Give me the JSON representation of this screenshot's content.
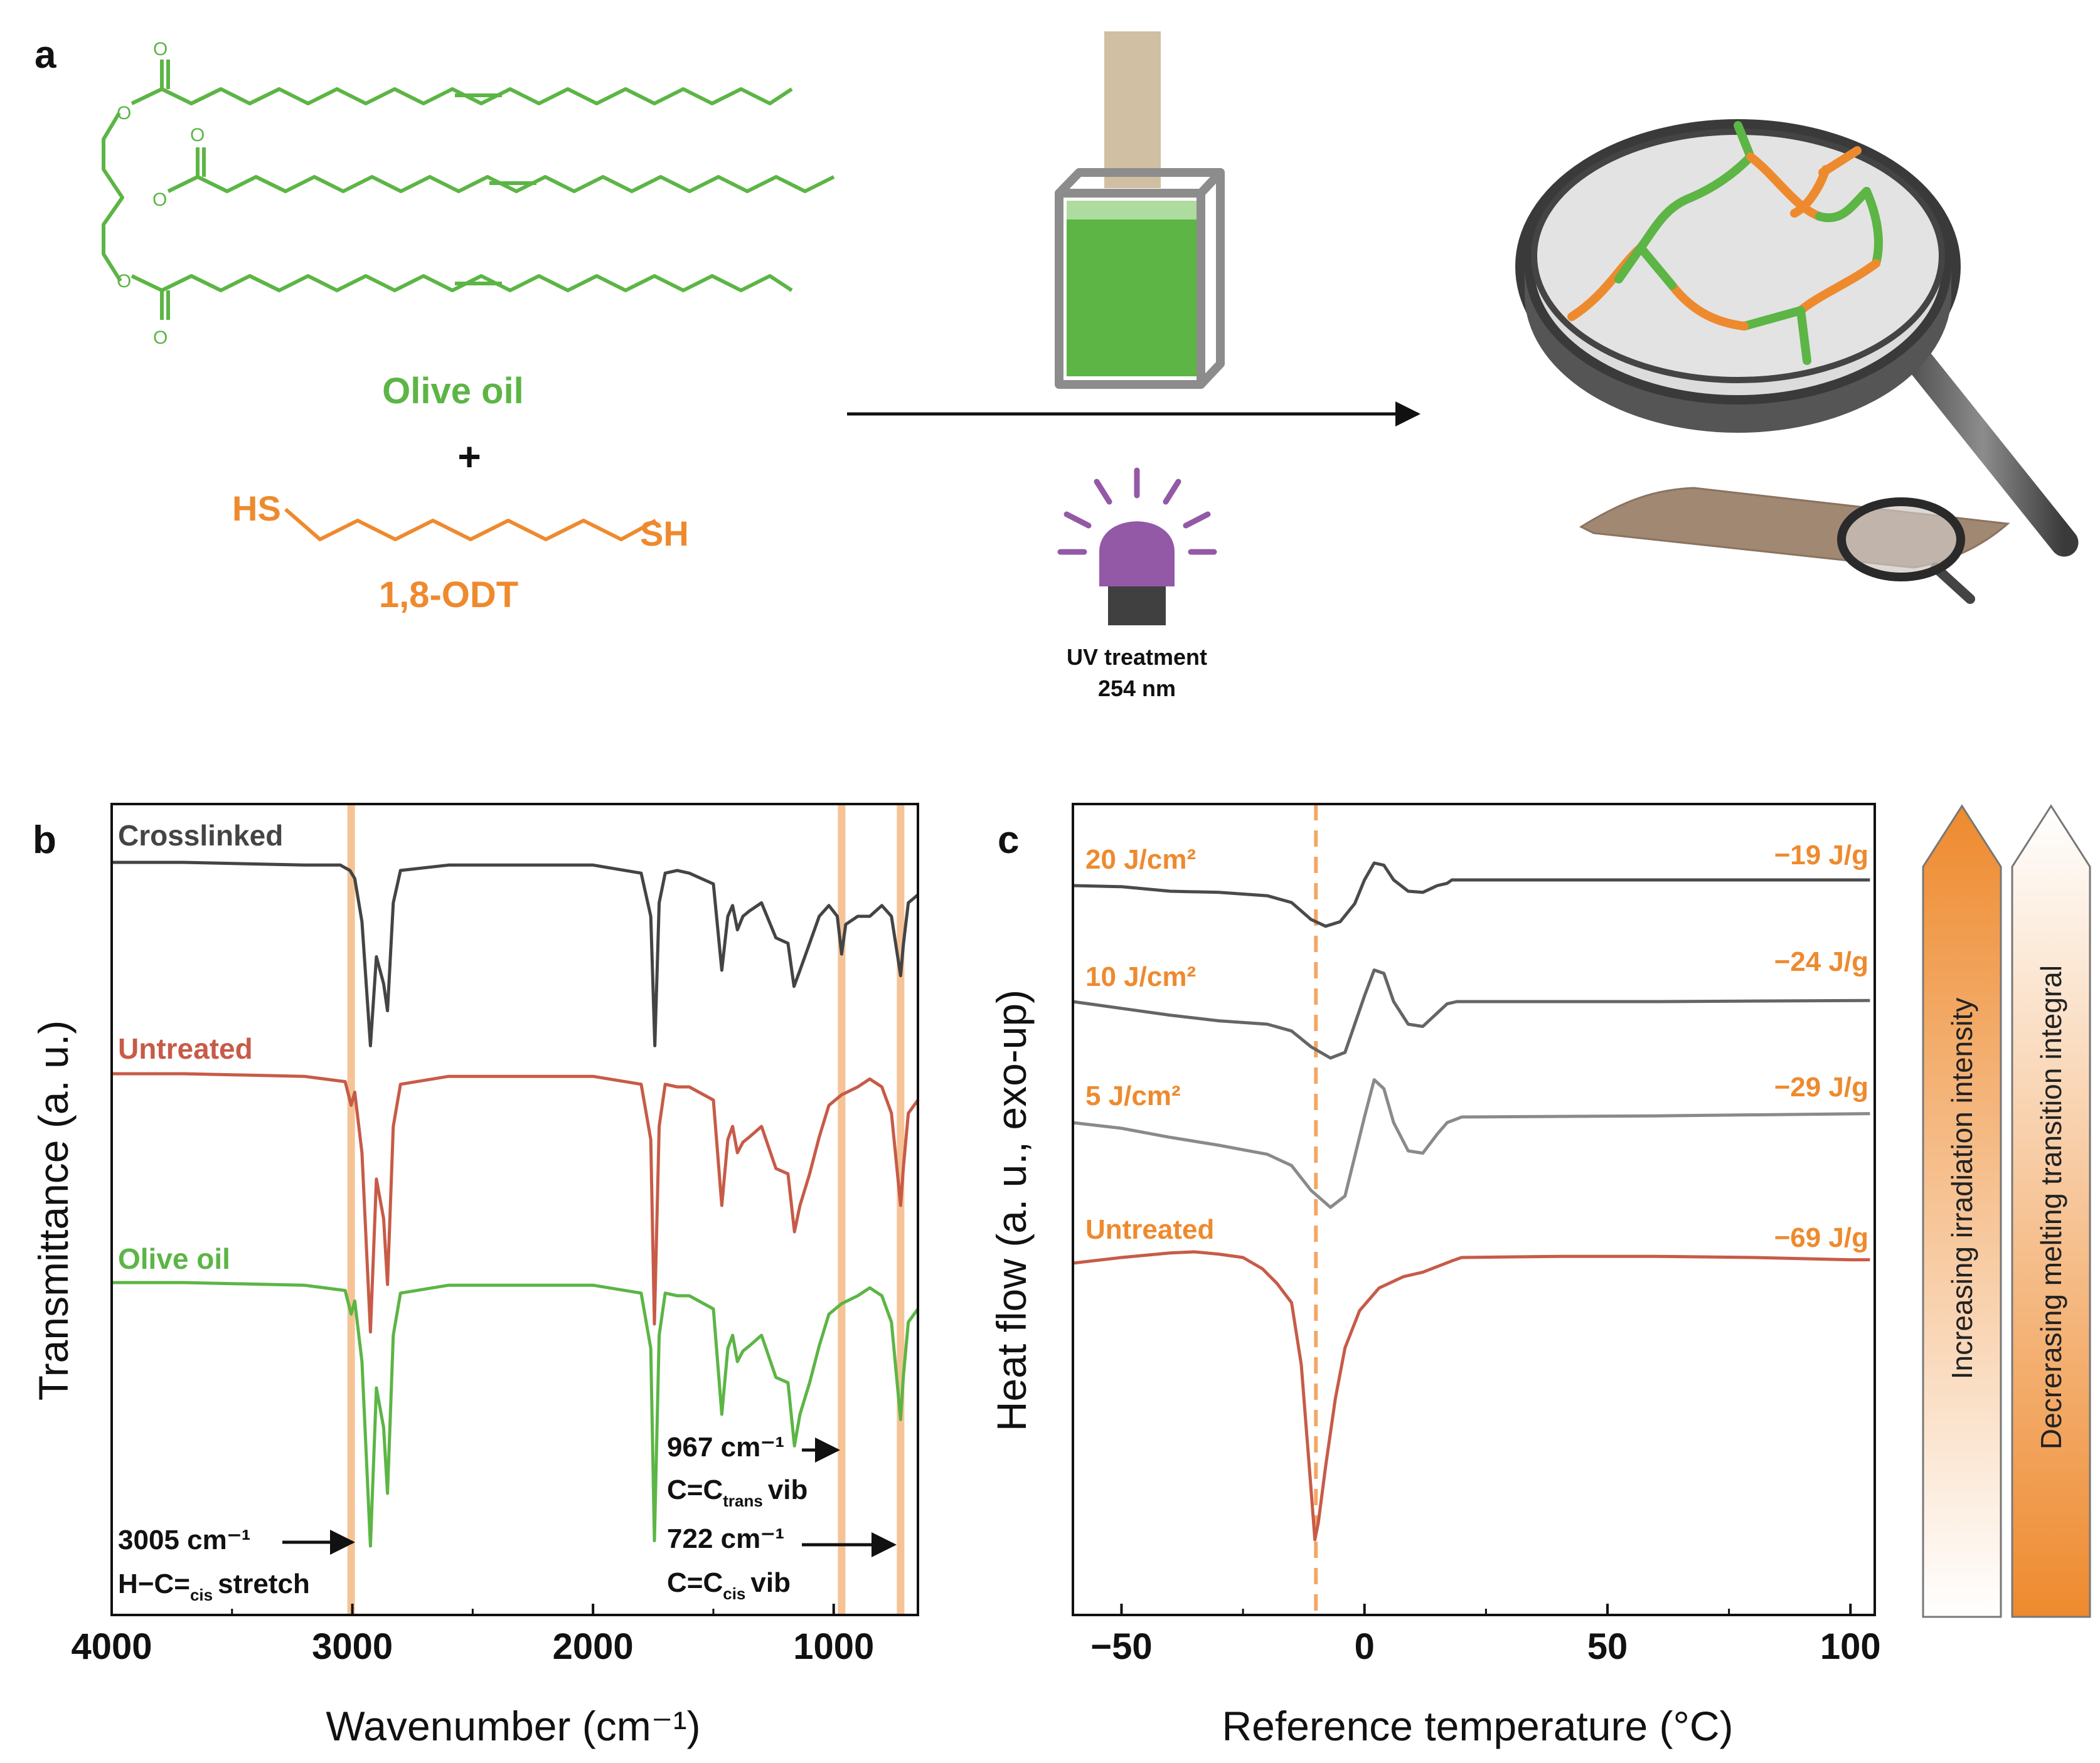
{
  "panel_a": {
    "label": "a",
    "olive_oil_label": "Olive oil",
    "plus": "+",
    "thiol_left": "HS",
    "thiol_right": "SH",
    "odt_label": "1,8-ODT",
    "uv_line1": "UV treatment",
    "uv_line2": "254 nm",
    "oxygen": "O",
    "colors": {
      "olive": "#5cb545",
      "thiol": "#ee8a2e",
      "uv": "#9359a6"
    }
  },
  "chart_data": [
    {
      "type": "line",
      "panel_label": "b",
      "title": "",
      "xlabel": "Wavenumber (cm⁻¹)",
      "ylabel": "Transmittance (a. u.)",
      "xlim": [
        4000,
        650
      ],
      "x_reversed": true,
      "x_ticks": [
        "4000",
        "3000",
        "2000",
        "1000"
      ],
      "series": [
        {
          "name": "Crosslinked",
          "color": "#444444",
          "points": [
            [
              4000,
              0.0
            ],
            [
              3700,
              0.0
            ],
            [
              3200,
              -0.01
            ],
            [
              3050,
              -0.01
            ],
            [
              3010,
              -0.03
            ],
            [
              2990,
              -0.06
            ],
            [
              2960,
              -0.22
            ],
            [
              2925,
              -0.68
            ],
            [
              2900,
              -0.35
            ],
            [
              2870,
              -0.45
            ],
            [
              2854,
              -0.55
            ],
            [
              2830,
              -0.15
            ],
            [
              2800,
              -0.03
            ],
            [
              2600,
              -0.01
            ],
            [
              2000,
              -0.01
            ],
            [
              1800,
              -0.04
            ],
            [
              1760,
              -0.2
            ],
            [
              1743,
              -0.68
            ],
            [
              1725,
              -0.15
            ],
            [
              1700,
              -0.04
            ],
            [
              1650,
              -0.03
            ],
            [
              1600,
              -0.04
            ],
            [
              1500,
              -0.08
            ],
            [
              1465,
              -0.4
            ],
            [
              1440,
              -0.2
            ],
            [
              1420,
              -0.16
            ],
            [
              1400,
              -0.25
            ],
            [
              1377,
              -0.2
            ],
            [
              1350,
              -0.18
            ],
            [
              1300,
              -0.15
            ],
            [
              1240,
              -0.28
            ],
            [
              1190,
              -0.3
            ],
            [
              1165,
              -0.46
            ],
            [
              1140,
              -0.4
            ],
            [
              1100,
              -0.3
            ],
            [
              1060,
              -0.2
            ],
            [
              1020,
              -0.16
            ],
            [
              985,
              -0.2
            ],
            [
              967,
              -0.34
            ],
            [
              950,
              -0.23
            ],
            [
              900,
              -0.2
            ],
            [
              850,
              -0.2
            ],
            [
              800,
              -0.16
            ],
            [
              760,
              -0.2
            ],
            [
              722,
              -0.42
            ],
            [
              710,
              -0.3
            ],
            [
              690,
              -0.15
            ],
            [
              650,
              -0.12
            ]
          ]
        },
        {
          "name": "Untreated",
          "color": "#c75b48",
          "points": [
            [
              4000,
              0.0
            ],
            [
              3700,
              0.0
            ],
            [
              3200,
              -0.01
            ],
            [
              3030,
              -0.03
            ],
            [
              3005,
              -0.12
            ],
            [
              2990,
              -0.07
            ],
            [
              2960,
              -0.3
            ],
            [
              2925,
              -0.98
            ],
            [
              2900,
              -0.4
            ],
            [
              2870,
              -0.55
            ],
            [
              2854,
              -0.8
            ],
            [
              2830,
              -0.2
            ],
            [
              2800,
              -0.04
            ],
            [
              2600,
              -0.01
            ],
            [
              2000,
              -0.01
            ],
            [
              1800,
              -0.04
            ],
            [
              1760,
              -0.25
            ],
            [
              1745,
              -0.95
            ],
            [
              1725,
              -0.2
            ],
            [
              1700,
              -0.04
            ],
            [
              1650,
              -0.05
            ],
            [
              1600,
              -0.05
            ],
            [
              1500,
              -0.1
            ],
            [
              1465,
              -0.5
            ],
            [
              1440,
              -0.25
            ],
            [
              1420,
              -0.2
            ],
            [
              1400,
              -0.3
            ],
            [
              1377,
              -0.26
            ],
            [
              1350,
              -0.24
            ],
            [
              1300,
              -0.2
            ],
            [
              1240,
              -0.36
            ],
            [
              1190,
              -0.38
            ],
            [
              1163,
              -0.6
            ],
            [
              1140,
              -0.5
            ],
            [
              1100,
              -0.38
            ],
            [
              1060,
              -0.24
            ],
            [
              1020,
              -0.12
            ],
            [
              967,
              -0.08
            ],
            [
              900,
              -0.05
            ],
            [
              850,
              -0.02
            ],
            [
              800,
              -0.05
            ],
            [
              760,
              -0.15
            ],
            [
              722,
              -0.5
            ],
            [
              710,
              -0.35
            ],
            [
              690,
              -0.15
            ],
            [
              650,
              -0.1
            ]
          ]
        },
        {
          "name": "Olive oil",
          "color": "#5cb545",
          "points": [
            [
              4000,
              0.0
            ],
            [
              3700,
              0.0
            ],
            [
              3200,
              -0.01
            ],
            [
              3030,
              -0.03
            ],
            [
              3005,
              -0.12
            ],
            [
              2990,
              -0.07
            ],
            [
              2960,
              -0.3
            ],
            [
              2925,
              -1.0
            ],
            [
              2900,
              -0.4
            ],
            [
              2870,
              -0.55
            ],
            [
              2854,
              -0.8
            ],
            [
              2830,
              -0.2
            ],
            [
              2800,
              -0.04
            ],
            [
              2600,
              -0.01
            ],
            [
              2000,
              -0.01
            ],
            [
              1800,
              -0.04
            ],
            [
              1760,
              -0.25
            ],
            [
              1745,
              -0.98
            ],
            [
              1725,
              -0.2
            ],
            [
              1700,
              -0.04
            ],
            [
              1650,
              -0.05
            ],
            [
              1600,
              -0.05
            ],
            [
              1500,
              -0.1
            ],
            [
              1465,
              -0.5
            ],
            [
              1440,
              -0.25
            ],
            [
              1420,
              -0.2
            ],
            [
              1400,
              -0.3
            ],
            [
              1377,
              -0.26
            ],
            [
              1350,
              -0.24
            ],
            [
              1300,
              -0.2
            ],
            [
              1240,
              -0.36
            ],
            [
              1190,
              -0.38
            ],
            [
              1163,
              -0.62
            ],
            [
              1140,
              -0.5
            ],
            [
              1100,
              -0.38
            ],
            [
              1060,
              -0.24
            ],
            [
              1020,
              -0.12
            ],
            [
              967,
              -0.08
            ],
            [
              900,
              -0.05
            ],
            [
              850,
              -0.02
            ],
            [
              800,
              -0.05
            ],
            [
              760,
              -0.15
            ],
            [
              722,
              -0.52
            ],
            [
              710,
              -0.35
            ],
            [
              690,
              -0.15
            ],
            [
              650,
              -0.1
            ]
          ]
        }
      ],
      "highlight_bands": [
        3005,
        967,
        722
      ],
      "annotations": [
        {
          "text": "3005 cm⁻¹",
          "line2": "H−C=",
          "sub": "cis",
          "tail": "stretch"
        },
        {
          "text": "967 cm⁻¹",
          "line2": "C=C",
          "sub": "trans",
          "tail": "vib"
        },
        {
          "text": "722 cm⁻¹",
          "line2": "C=C",
          "sub": "cis",
          "tail": "vib"
        }
      ],
      "grid": false
    },
    {
      "type": "line",
      "panel_label": "c",
      "title": "",
      "xlabel": "Reference temperature (°C)",
      "ylabel": "Heat flow (a. u., exo-up)",
      "xlim": [
        -60,
        105
      ],
      "x_ticks": [
        "−50",
        "0",
        "50",
        "100"
      ],
      "reference_line_x": -10,
      "series": [
        {
          "name": "20 J/cm²",
          "enthalpy": "−19 J/g",
          "color": "#4a4a4a",
          "points": [
            [
              -60,
              0.0
            ],
            [
              -50,
              -0.01
            ],
            [
              -40,
              -0.05
            ],
            [
              -30,
              -0.06
            ],
            [
              -20,
              -0.09
            ],
            [
              -15,
              -0.15
            ],
            [
              -11,
              -0.3
            ],
            [
              -8,
              -0.36
            ],
            [
              -5,
              -0.32
            ],
            [
              -2,
              -0.16
            ],
            [
              0,
              0.05
            ],
            [
              2,
              0.2
            ],
            [
              4,
              0.18
            ],
            [
              6,
              0.05
            ],
            [
              9,
              -0.05
            ],
            [
              12,
              -0.06
            ],
            [
              15,
              0.0
            ],
            [
              17,
              0.02
            ],
            [
              18,
              0.05
            ],
            [
              20,
              0.05
            ],
            [
              60,
              0.05
            ],
            [
              104,
              0.05
            ]
          ]
        },
        {
          "name": "10 J/cm²",
          "enthalpy": "−24 J/g",
          "color": "#656565",
          "points": [
            [
              -60,
              0.0
            ],
            [
              -50,
              -0.06
            ],
            [
              -40,
              -0.12
            ],
            [
              -30,
              -0.17
            ],
            [
              -20,
              -0.2
            ],
            [
              -15,
              -0.26
            ],
            [
              -11,
              -0.4
            ],
            [
              -7,
              -0.5
            ],
            [
              -4,
              -0.45
            ],
            [
              -2,
              -0.2
            ],
            [
              0,
              0.05
            ],
            [
              2,
              0.28
            ],
            [
              4,
              0.25
            ],
            [
              6,
              0.0
            ],
            [
              9,
              -0.2
            ],
            [
              12,
              -0.22
            ],
            [
              15,
              -0.1
            ],
            [
              17,
              -0.02
            ],
            [
              19,
              0.0
            ],
            [
              25,
              0.0
            ],
            [
              60,
              0.0
            ],
            [
              104,
              0.01
            ]
          ]
        },
        {
          "name": "5 J/cm²",
          "enthalpy": "−29 J/g",
          "color": "#8a8a8a",
          "points": [
            [
              -60,
              0.0
            ],
            [
              -50,
              -0.05
            ],
            [
              -40,
              -0.13
            ],
            [
              -30,
              -0.2
            ],
            [
              -20,
              -0.28
            ],
            [
              -15,
              -0.38
            ],
            [
              -11,
              -0.6
            ],
            [
              -7,
              -0.75
            ],
            [
              -4,
              -0.65
            ],
            [
              -2,
              -0.3
            ],
            [
              0,
              0.05
            ],
            [
              2,
              0.38
            ],
            [
              4,
              0.3
            ],
            [
              6,
              0.0
            ],
            [
              9,
              -0.25
            ],
            [
              12,
              -0.27
            ],
            [
              15,
              -0.1
            ],
            [
              17,
              0.0
            ],
            [
              20,
              0.05
            ],
            [
              60,
              0.06
            ],
            [
              104,
              0.08
            ]
          ]
        },
        {
          "name": "Untreated",
          "enthalpy": "−69 J/g",
          "color": "#c75b48",
          "points": [
            [
              -60,
              0.0
            ],
            [
              -50,
              0.05
            ],
            [
              -40,
              0.09
            ],
            [
              -35,
              0.1
            ],
            [
              -30,
              0.08
            ],
            [
              -25,
              0.05
            ],
            [
              -21,
              -0.05
            ],
            [
              -18,
              -0.18
            ],
            [
              -15,
              -0.35
            ],
            [
              -13,
              -0.9
            ],
            [
              -11,
              -2.0
            ],
            [
              -10.2,
              -2.45
            ],
            [
              -9.5,
              -2.3
            ],
            [
              -8,
              -1.8
            ],
            [
              -6,
              -1.2
            ],
            [
              -4,
              -0.75
            ],
            [
              -1,
              -0.42
            ],
            [
              3,
              -0.22
            ],
            [
              8,
              -0.12
            ],
            [
              12,
              -0.08
            ],
            [
              15,
              -0.03
            ],
            [
              18,
              0.02
            ],
            [
              20,
              0.05
            ],
            [
              40,
              0.06
            ],
            [
              60,
              0.06
            ],
            [
              80,
              0.05
            ],
            [
              100,
              0.03
            ],
            [
              104,
              0.03
            ]
          ]
        }
      ],
      "grid": false
    }
  ],
  "side_arrows": {
    "irradiation": "Increasing irradiation intensity",
    "melting": "Decrerasing melting transition integral",
    "accent": "#ee8a2e"
  }
}
